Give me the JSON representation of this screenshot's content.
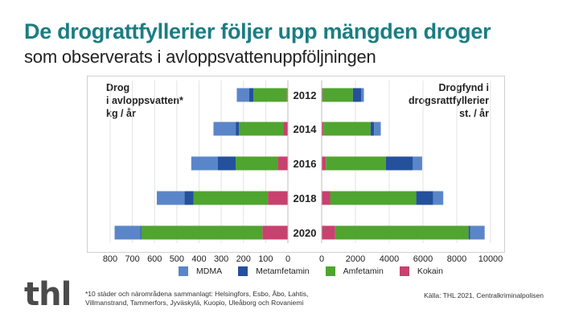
{
  "header": {
    "title": "De drograttfyllerier följer upp mängden droger",
    "subtitle": "som observerats i avloppsvattenuppföljningen"
  },
  "colors": {
    "title": "#1b7d83",
    "MDMA": "#5a86c9",
    "Metamfetamin": "#24509c",
    "Amfetamin": "#4fa52f",
    "Kokain": "#c8416f"
  },
  "footer": {
    "logo": "thl",
    "footnote": "*10 städer och närområdena sammanlagt: Helsingfors, Esbo, Åbo, Lahtis, Villmanstrand, Tammerfors, Jyväskylä, Kuopio, Uleåborg och Rovaniemi",
    "source": "Källa: THL 2021, Centralkriminalpolisen"
  },
  "chart_data": [
    {
      "type": "bar",
      "orientation": "horizontal-stacked",
      "x_direction": "reversed",
      "ylabel": "Drog i avloppsvatten* kg / år",
      "ylabel_lines": [
        "Drog",
        "i avloppsvatten*",
        "kg / år"
      ],
      "categories": [
        "2012",
        "2014",
        "2016",
        "2018",
        "2020"
      ],
      "xlim": [
        0,
        800
      ],
      "xticks": [
        800,
        700,
        600,
        500,
        400,
        300,
        200,
        100,
        0
      ],
      "series": [
        {
          "name": "Kokain",
          "values": [
            5,
            20,
            45,
            90,
            115
          ]
        },
        {
          "name": "Amfetamin",
          "values": [
            150,
            200,
            190,
            335,
            545
          ]
        },
        {
          "name": "Metamfetamin",
          "values": [
            20,
            15,
            80,
            40,
            5
          ]
        },
        {
          "name": "MDMA",
          "values": [
            55,
            100,
            120,
            125,
            115
          ]
        }
      ]
    },
    {
      "type": "bar",
      "orientation": "horizontal-stacked",
      "ylabel": "Drogfynd i drogsrattfyllerier st. / år",
      "ylabel_lines": [
        "Drogfynd i",
        "drogsrattfyllerier",
        "st. / år"
      ],
      "categories": [
        "2012",
        "2014",
        "2016",
        "2018",
        "2020"
      ],
      "xlim": [
        0,
        10000
      ],
      "xticks": [
        0,
        2000,
        4000,
        6000,
        8000,
        10000
      ],
      "series": [
        {
          "name": "Kokain",
          "values": [
            50,
            100,
            250,
            500,
            800
          ]
        },
        {
          "name": "Amfetamin",
          "values": [
            1800,
            2800,
            3550,
            5100,
            7900
          ]
        },
        {
          "name": "Metamfetamin",
          "values": [
            500,
            200,
            1600,
            1000,
            100
          ]
        },
        {
          "name": "MDMA",
          "values": [
            150,
            400,
            550,
            600,
            850
          ]
        }
      ]
    }
  ],
  "legend": [
    {
      "name": "MDMA",
      "label": "MDMA"
    },
    {
      "name": "Metamfetamin",
      "label": "Metamfetamin"
    },
    {
      "name": "Amfetamin",
      "label": "Amfetamin"
    },
    {
      "name": "Kokain",
      "label": "Kokain"
    }
  ]
}
